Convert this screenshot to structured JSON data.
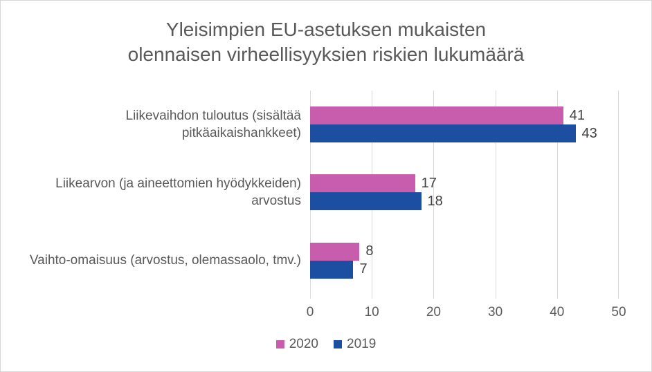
{
  "chart_data": {
    "type": "bar",
    "orientation": "horizontal",
    "title": "Yleisimpien EU-asetuksen mukaisten olennaisen virheellisyyksien riskien lukumäärä",
    "title_lines": [
      "Yleisimpien EU-asetuksen mukaisten",
      "olennaisen virheellisyyksien riskien lukumäärä"
    ],
    "categories": [
      "Liikevaihdon tuloutus (sisältää pitkäaikaishankkeet)",
      "Liikearvon (ja aineettomien hyödykkeiden) arvostus",
      "Vaihto-omaisuus (arvostus, olemassaolo, tmv.)"
    ],
    "series": [
      {
        "name": "2020",
        "color": "#c85cad",
        "values": [
          41,
          17,
          8
        ]
      },
      {
        "name": "2019",
        "color": "#1c4ea1",
        "values": [
          43,
          18,
          7
        ]
      }
    ],
    "xlim": [
      0,
      50
    ],
    "xticks": [
      "0",
      "10",
      "20",
      "30",
      "40",
      "50"
    ],
    "grid": "vertical",
    "legend_position": "bottom",
    "colors": {
      "title_text": "#595959",
      "axis_text": "#595959",
      "value_labels": "#404040",
      "gridline": "#d9d9d9",
      "frame_border": "#d6d6d6",
      "background": "#ffffff"
    }
  }
}
